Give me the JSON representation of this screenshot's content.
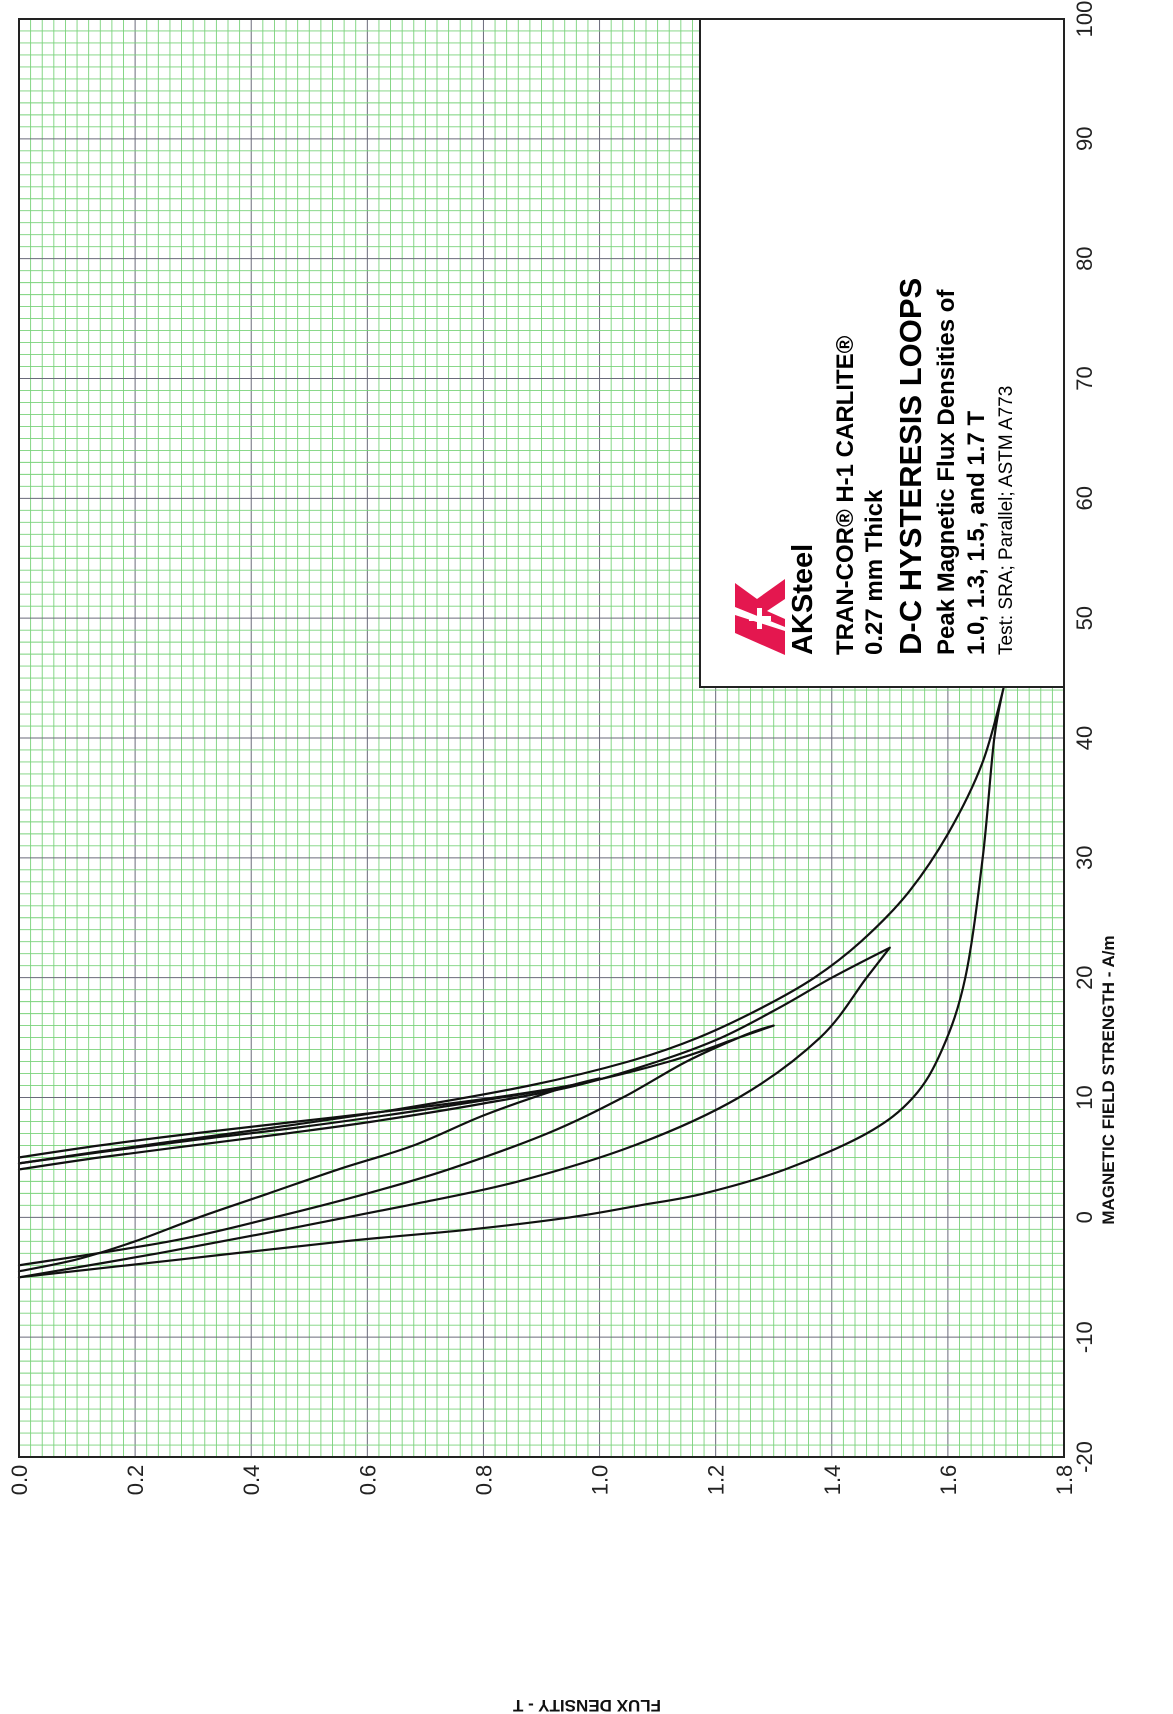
{
  "chart_data": {
    "type": "line",
    "title": "D-C HYSTERESIS LOOPS",
    "title_lines": [
      "TRAN-COR® H-1 CARLITE®",
      "0.27 mm Thick",
      "D-C HYSTERESIS LOOPS",
      "Peak Magnetic Flux Densities of",
      "1.0, 1.3, 1.5, and 1.7 T",
      "Test: SRA; Parallel; ASTM A773"
    ],
    "brand": "AKSteel",
    "xlabel": "MAGNETIC FIELD STRENGTH - A/m",
    "ylabel": "FLUX DENSITY - T",
    "xlim": [
      -20,
      100
    ],
    "ylim": [
      0.0,
      1.8
    ],
    "x_ticks": [
      "-20",
      "-10",
      "0",
      "10",
      "20",
      "30",
      "40",
      "50",
      "60",
      "70",
      "80",
      "90",
      "100"
    ],
    "y_ticks": [
      "0.0",
      "0.2",
      "0.4",
      "0.6",
      "0.8",
      "1.0",
      "1.2",
      "1.4",
      "1.6",
      "1.8"
    ],
    "grid": true,
    "grid_colors": {
      "minor": "#79d27a",
      "major": "#6a6a7a"
    },
    "line_color": "#111111",
    "brand_color": "#e4174f",
    "series": [
      {
        "peak": 1.0,
        "x": [
          5.0,
          6.0,
          7.0,
          8.0,
          9.0,
          10.0,
          11.0,
          11.6,
          10.7,
          8.5,
          6.0,
          4.0,
          2.0,
          0.0,
          -2.0,
          -3.5,
          -4.5
        ],
        "y": [
          0.0,
          0.14,
          0.3,
          0.48,
          0.66,
          0.82,
          0.95,
          1.0,
          0.93,
          0.8,
          0.68,
          0.55,
          0.43,
          0.31,
          0.2,
          0.1,
          0.0
        ]
      },
      {
        "peak": 1.3,
        "x": [
          4.5,
          5.5,
          6.5,
          7.5,
          9.0,
          11.0,
          13.0,
          15.0,
          16.0,
          15.2,
          13.0,
          10.0,
          7.0,
          4.0,
          2.0,
          0.0,
          -2.0,
          -4.0
        ],
        "y": [
          0.0,
          0.15,
          0.31,
          0.48,
          0.7,
          0.95,
          1.12,
          1.24,
          1.3,
          1.25,
          1.15,
          1.04,
          0.91,
          0.74,
          0.6,
          0.44,
          0.26,
          0.0
        ]
      },
      {
        "peak": 1.5,
        "x": [
          4.0,
          5.0,
          6.0,
          7.0,
          8.0,
          9.5,
          11.0,
          13.0,
          15.0,
          17.5,
          20.0,
          22.5,
          20.0,
          15.0,
          10.0,
          6.0,
          3.0,
          1.0,
          -1.0,
          -3.0,
          -5.0
        ],
        "y": [
          0.0,
          0.14,
          0.3,
          0.46,
          0.61,
          0.8,
          0.96,
          1.1,
          1.21,
          1.31,
          1.4,
          1.5,
          1.46,
          1.38,
          1.24,
          1.06,
          0.86,
          0.67,
          0.46,
          0.24,
          0.0
        ]
      },
      {
        "peak": 1.7,
        "x": [
          4.5,
          5.5,
          6.5,
          7.5,
          9.0,
          11.0,
          13.0,
          15.0,
          17.5,
          20.0,
          23.0,
          27.0,
          32.0,
          38.0,
          45.0,
          40.0,
          30.0,
          20.0,
          14.0,
          10.0,
          7.0,
          4.0,
          2.0,
          1.0,
          0.0,
          -1.0,
          -2.0,
          -3.5,
          -5.0
        ],
        "y": [
          0.0,
          0.14,
          0.29,
          0.44,
          0.65,
          0.88,
          1.05,
          1.17,
          1.28,
          1.37,
          1.45,
          1.53,
          1.6,
          1.66,
          1.7,
          1.68,
          1.66,
          1.63,
          1.59,
          1.54,
          1.46,
          1.32,
          1.18,
          1.07,
          0.95,
          0.78,
          0.56,
          0.28,
          0.0
        ]
      }
    ]
  }
}
